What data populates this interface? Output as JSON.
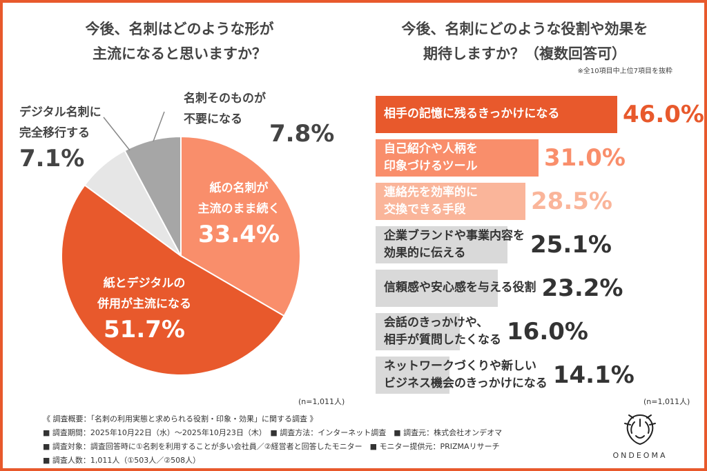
{
  "left_title": [
    "今後、名刺はどのような形が",
    "主流になると思いますか？"
  ],
  "right_title": [
    "今後、名刺にどのような役割や効果を",
    "期待しますか？（複数回答可）"
  ],
  "right_note": "※全10項目中上位7項目を抜粋",
  "n_left": "(n=1,011人)",
  "n_right": "(n=1,011人)",
  "colors": {
    "accent": "#e8592c",
    "light": "#f98e6b",
    "lighter": "#fab59a",
    "grey": "#a6a6a6",
    "greylight": "#d9d9d9",
    "greylighter": "#e6e6e6"
  },
  "chart_data": [
    {
      "type": "pie",
      "slices": [
        {
          "label": "紙の名刺が主流のまま続く",
          "label_lines": [
            "紙の名刺が",
            "主流のまま続く"
          ],
          "value": 33.4,
          "pct": "33.4%"
        },
        {
          "label": "紙とデジタルの併用が主流になる",
          "label_lines": [
            "紙とデジタルの",
            "併用が主流になる"
          ],
          "value": 51.7,
          "pct": "51.7%"
        },
        {
          "label": "デジタル名刺に完全移行する",
          "label_lines": [
            "デジタル名刺に",
            "完全移行する"
          ],
          "value": 7.1,
          "pct": "7.1%"
        },
        {
          "label": "名刺そのものが不要になる",
          "label_lines": [
            "名刺そのものが",
            "不要になる"
          ],
          "value": 7.8,
          "pct": "7.8%"
        }
      ]
    },
    {
      "type": "bar",
      "orientation": "horizontal",
      "categories": [
        [
          "相手の記憶に残るきっかけになる"
        ],
        [
          "自己紹介や人柄を",
          "印象づけるツール"
        ],
        [
          "連絡先を効率的に",
          "交換できる手段"
        ],
        [
          "企業ブランドや事業内容を",
          "効果的に伝える"
        ],
        [
          "信頼感や安心感を与える役割"
        ],
        [
          "会話のきっかけや、",
          "相手が質問したくなる"
        ],
        [
          "ネットワークづくりや新しい",
          "ビジネス機会のきっかけになる"
        ]
      ],
      "values": [
        46.0,
        31.0,
        28.5,
        25.1,
        23.2,
        16.0,
        14.1
      ],
      "value_labels": [
        "46.0%",
        "31.0%",
        "28.5%",
        "25.1%",
        "23.2%",
        "16.0%",
        "14.1%"
      ]
    }
  ],
  "footer": [
    "《 調査概要：「名刺の利用実態と求められる役割・印象・効果」に関する調査 》",
    "■ 調査期間：2025年10月22日（水）～2025年10月23日（木）　■ 調査方法：インターネット調査　■ 調査元：株式会社オンデオマ",
    "■ 調査対象：調査回答時に①名刺を利用することが多い会社員／②経営者と回答したモニター　■ モニター提供元：PRIZMAリサーチ",
    "■ 調査人数：1,011人（①503人／②508人）"
  ],
  "brand": {
    "name": "ONDEOMA",
    "icon": "lion-logo-icon"
  }
}
